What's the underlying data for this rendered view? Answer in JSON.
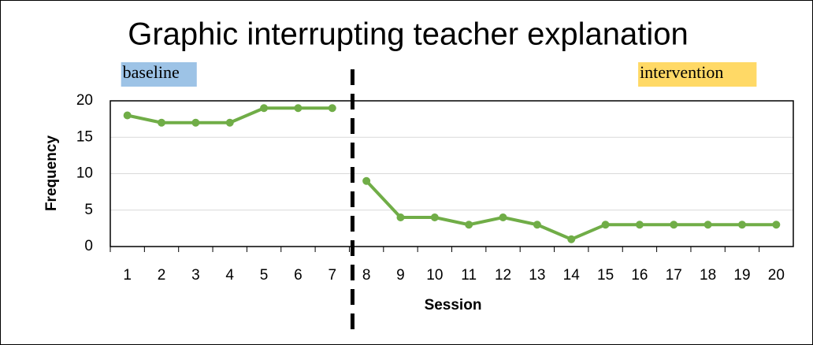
{
  "chart_data": {
    "type": "line",
    "title": "Graphic interrupting teacher explanation",
    "x_label": "Session",
    "y_label": "Frequency",
    "x": [
      1,
      2,
      3,
      4,
      5,
      6,
      7,
      8,
      9,
      10,
      11,
      12,
      13,
      14,
      15,
      16,
      17,
      18,
      19,
      20
    ],
    "series": [
      {
        "color": "#70ad47",
        "values": [
          18,
          17,
          17,
          17,
          19,
          19,
          19,
          9,
          4,
          4,
          3,
          4,
          3,
          1,
          3,
          3,
          3,
          3,
          3,
          3
        ]
      }
    ],
    "phases": [
      {
        "label": "baseline",
        "start": 1,
        "end": 7,
        "color": "#9dc3e6"
      },
      {
        "label": "intervention",
        "start": 8,
        "end": 20,
        "color": "#ffd966"
      }
    ],
    "xlim": [
      0.5,
      20.5
    ],
    "xticks": [
      1,
      2,
      3,
      4,
      5,
      6,
      7,
      8,
      9,
      10,
      11,
      12,
      13,
      14,
      15,
      16,
      17,
      18,
      19,
      20
    ],
    "ylim": [
      0,
      20
    ],
    "yticks": [
      0,
      5,
      10,
      15,
      20
    ],
    "grid": true
  }
}
